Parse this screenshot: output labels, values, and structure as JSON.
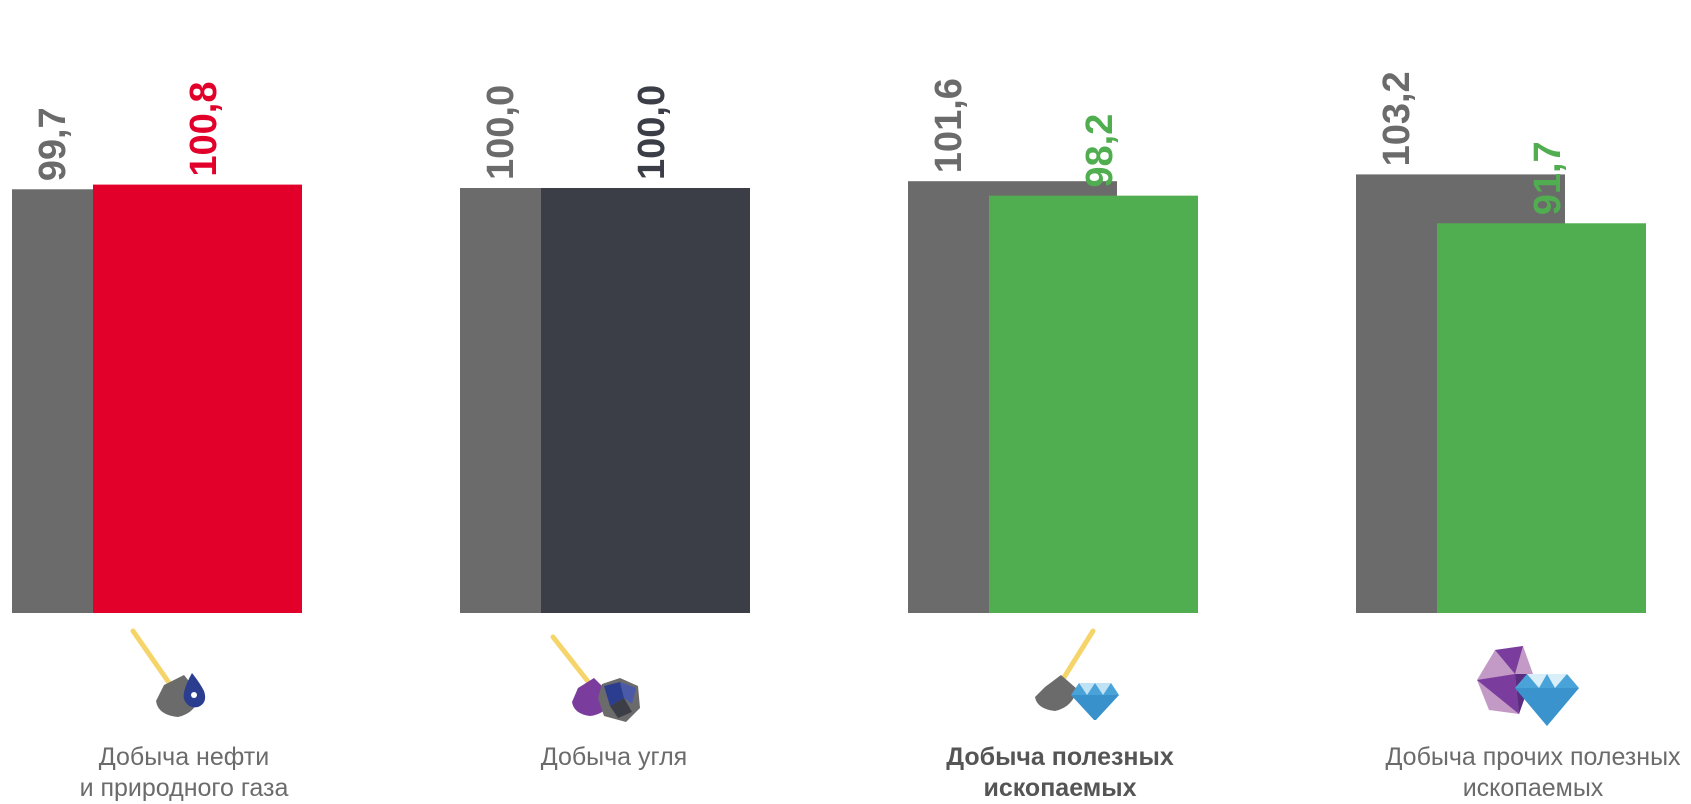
{
  "chart_data": {
    "type": "bar",
    "title": "",
    "xlabel": "",
    "ylabel": "",
    "categories": [
      [
        "Добыча нефти",
        "и природного газа"
      ],
      [
        "Добыча угля"
      ],
      [
        "Добыча полезных",
        "ископаемых"
      ],
      [
        "Добыча прочих полезных",
        "ископаемых"
      ]
    ],
    "category_bold": [
      false,
      false,
      true,
      false
    ],
    "series": [
      {
        "values": [
          99.7,
          100.0,
          101.6,
          103.2
        ],
        "labels": [
          "99,7",
          "100,0",
          "101,6",
          "103,2"
        ]
      },
      {
        "values": [
          100.8,
          100.0,
          98.2,
          91.7
        ],
        "labels": [
          "100,8",
          "100,0",
          "98,2",
          "91,7"
        ]
      }
    ],
    "colors": {
      "series1": "#6b6b6b",
      "series2": [
        "#e2002a",
        "#3b3e46",
        "#50ae50",
        "#50ae50"
      ],
      "label1": "#6b6b6b",
      "label2": [
        "#e2002a",
        "#3b3e46",
        "#50ae50",
        "#50ae50"
      ]
    },
    "icons": [
      "shovel-oil-drop-icon",
      "shovel-coal-icon",
      "shovel-diamond-icon",
      "gems-icon"
    ],
    "grid": false,
    "legend": "none"
  }
}
